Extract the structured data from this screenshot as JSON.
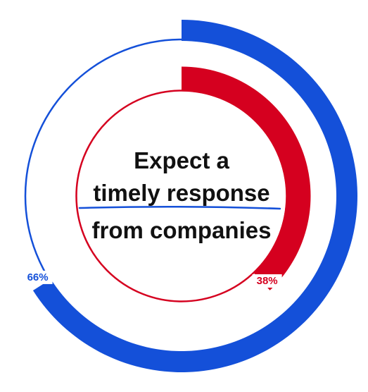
{
  "chart_data": {
    "type": "pie",
    "subtype": "concentric-donut",
    "title_lines": [
      "Expect a",
      "timely response",
      "from companies"
    ],
    "emphasized_phrase": "timely response",
    "series": [
      {
        "value": 66,
        "label": "66%",
        "color": "#1450d9"
      },
      {
        "value": 38,
        "label": "38%",
        "color": "#d5001f"
      }
    ],
    "background_color": "#ffffff",
    "text_color": "#111111"
  }
}
